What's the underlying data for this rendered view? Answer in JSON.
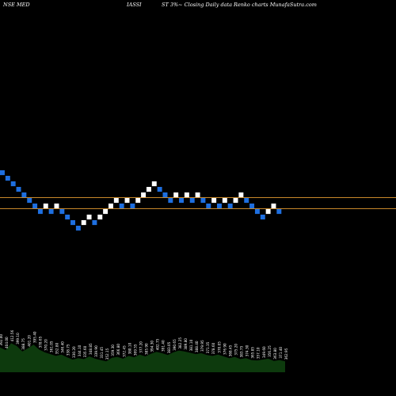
{
  "header": {
    "left": "NSE MED",
    "middle": "IASSI",
    "right": "ST 3%~ Closing Daily data Renko charts MunafaSutra.com"
  },
  "colors": {
    "up": "#ffffff",
    "down": "#1e6fe0",
    "line": "#c8882a",
    "volume": "#0d3a0d",
    "text": "#ffffff"
  },
  "chart_data": {
    "type": "renko",
    "brick_size_pct": 3,
    "ylim": [
      0,
      32
    ],
    "bricks": [
      {
        "level": 18,
        "dir": "down"
      },
      {
        "level": 17,
        "dir": "down"
      },
      {
        "level": 16,
        "dir": "down"
      },
      {
        "level": 15,
        "dir": "down"
      },
      {
        "level": 14,
        "dir": "down"
      },
      {
        "level": 13,
        "dir": "down"
      },
      {
        "level": 12,
        "dir": "down"
      },
      {
        "level": 11,
        "dir": "down"
      },
      {
        "level": 12,
        "dir": "up"
      },
      {
        "level": 11,
        "dir": "down"
      },
      {
        "level": 12,
        "dir": "up"
      },
      {
        "level": 11,
        "dir": "down"
      },
      {
        "level": 10,
        "dir": "down"
      },
      {
        "level": 9,
        "dir": "down"
      },
      {
        "level": 8,
        "dir": "down"
      },
      {
        "level": 9,
        "dir": "up"
      },
      {
        "level": 10,
        "dir": "up"
      },
      {
        "level": 9,
        "dir": "down"
      },
      {
        "level": 10,
        "dir": "up"
      },
      {
        "level": 11,
        "dir": "up"
      },
      {
        "level": 12,
        "dir": "up"
      },
      {
        "level": 13,
        "dir": "up"
      },
      {
        "level": 12,
        "dir": "down"
      },
      {
        "level": 13,
        "dir": "up"
      },
      {
        "level": 12,
        "dir": "down"
      },
      {
        "level": 13,
        "dir": "up"
      },
      {
        "level": 14,
        "dir": "up"
      },
      {
        "level": 15,
        "dir": "up"
      },
      {
        "level": 16,
        "dir": "up"
      },
      {
        "level": 15,
        "dir": "down"
      },
      {
        "level": 14,
        "dir": "down"
      },
      {
        "level": 13,
        "dir": "down"
      },
      {
        "level": 14,
        "dir": "up"
      },
      {
        "level": 13,
        "dir": "down"
      },
      {
        "level": 14,
        "dir": "up"
      },
      {
        "level": 13,
        "dir": "down"
      },
      {
        "level": 14,
        "dir": "up"
      },
      {
        "level": 13,
        "dir": "down"
      },
      {
        "level": 12,
        "dir": "down"
      },
      {
        "level": 13,
        "dir": "up"
      },
      {
        "level": 12,
        "dir": "down"
      },
      {
        "level": 13,
        "dir": "up"
      },
      {
        "level": 12,
        "dir": "down"
      },
      {
        "level": 13,
        "dir": "up"
      },
      {
        "level": 14,
        "dir": "up"
      },
      {
        "level": 13,
        "dir": "down"
      },
      {
        "level": 12,
        "dir": "down"
      },
      {
        "level": 11,
        "dir": "down"
      },
      {
        "level": 10,
        "dir": "down"
      },
      {
        "level": 11,
        "dir": "up"
      },
      {
        "level": 12,
        "dir": "up"
      },
      {
        "level": 11,
        "dir": "down"
      }
    ],
    "reference_levels": [
      13,
      11
    ],
    "volume": {
      "values": [
        55,
        49,
        64,
        58,
        46,
        53,
        61,
        50,
        44,
        40,
        36,
        39,
        33,
        28,
        31,
        29,
        35,
        30,
        27,
        24,
        32,
        34,
        30,
        36,
        33,
        39,
        35,
        41,
        45,
        42,
        38,
        44,
        48,
        46,
        43,
        40,
        42,
        38,
        36,
        39,
        35,
        31,
        34,
        29,
        31,
        27,
        26,
        28,
        30,
        25,
        27,
        24
      ],
      "labels": [
        "392.00",
        "404.00",
        "412.56",
        "399.10",
        "388.75",
        "401.20",
        "395.40",
        "378.65",
        "370.20",
        "361.05",
        "352.80",
        "346.40",
        "338.75",
        "330.20",
        "344.10",
        "335.60",
        "348.85",
        "339.90",
        "331.45",
        "352.15",
        "359.30",
        "366.80",
        "372.45",
        "380.10",
        "369.55",
        "377.20",
        "385.90",
        "394.30",
        "402.75",
        "391.40",
        "383.05",
        "390.65",
        "382.25",
        "389.80",
        "381.10",
        "388.40",
        "379.95",
        "371.35",
        "378.60",
        "370.05",
        "376.90",
        "368.45",
        "375.20",
        "383.75",
        "374.30",
        "365.85",
        "357.10",
        "349.60",
        "356.25",
        "363.80",
        "371.40",
        "362.95"
      ]
    }
  }
}
